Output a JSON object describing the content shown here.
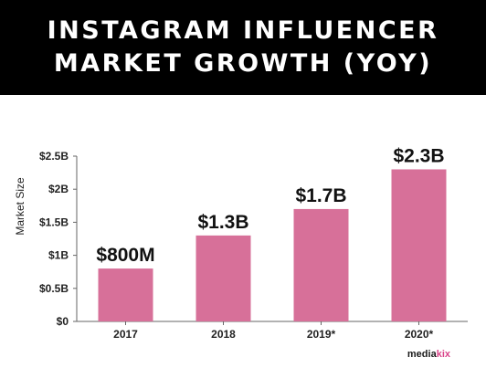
{
  "header": {
    "title_line1": "INSTAGRAM INFLUENCER",
    "title_line2": "MARKET GROWTH (YOY)"
  },
  "logo": {
    "text_dark": "media",
    "text_accent": "kix"
  },
  "colors": {
    "bar": "#d77099",
    "header_bg": "#000000",
    "axis": "#666666"
  },
  "chart_data": {
    "type": "bar",
    "title": "INSTAGRAM INFLUENCER MARKET GROWTH (YOY)",
    "categories": [
      "2017",
      "2018",
      "2019*",
      "2020*"
    ],
    "values": [
      0.8,
      1.3,
      1.7,
      2.3
    ],
    "data_labels": [
      "$800M",
      "$1.3B",
      "$1.7B",
      "$2.3B"
    ],
    "ylabel": "Market Size",
    "xlabel": "",
    "ylim": [
      0,
      2.5
    ],
    "yticks": [
      0,
      0.5,
      1,
      1.5,
      2,
      2.5
    ],
    "ytick_labels": [
      "$0",
      "$0.5B",
      "$1B",
      "$1.5B",
      "$2B",
      "$2.5B"
    ],
    "grid": false
  }
}
